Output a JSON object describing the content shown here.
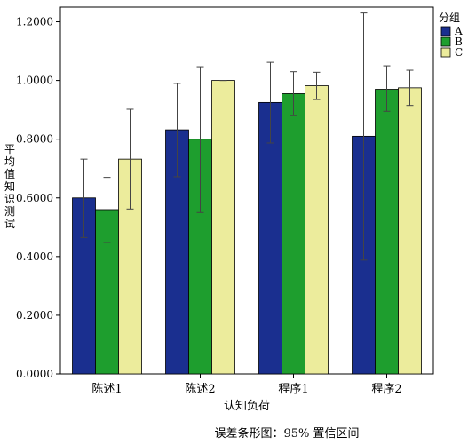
{
  "chart_data": {
    "type": "bar",
    "categories": [
      "陈述1",
      "陈述2",
      "程序1",
      "程序2"
    ],
    "series": [
      {
        "name": "A",
        "color": "#1a2f8f",
        "values": [
          0.6,
          0.832,
          0.925,
          0.81
        ],
        "ci_low": [
          0.465,
          0.672,
          0.787,
          0.388
        ],
        "ci_high": [
          0.732,
          0.99,
          1.062,
          1.23
        ]
      },
      {
        "name": "B",
        "color": "#1e9e2e",
        "values": [
          0.56,
          0.8,
          0.955,
          0.97
        ],
        "ci_low": [
          0.448,
          0.55,
          0.88,
          0.895
        ],
        "ci_high": [
          0.67,
          1.047,
          1.03,
          1.05
        ]
      },
      {
        "name": "C",
        "color": "#ecec9c",
        "values": [
          0.732,
          1.0,
          0.982,
          0.975
        ],
        "ci_low": [
          0.562,
          1.0,
          0.935,
          0.915
        ],
        "ci_high": [
          0.902,
          1.0,
          1.028,
          1.035
        ]
      }
    ],
    "ylim": [
      0,
      1.25
    ],
    "yticks": [
      "0.0000",
      "0.2000",
      "0.4000",
      "0.6000",
      "0.8000",
      "1.0000",
      "1.2000"
    ],
    "ylabel": "平均值知识测试",
    "xlabel": "认知负荷",
    "legend_title": "分组",
    "legend_position": "top-right",
    "caption": "误差条形图：95% 置信区间",
    "grid": false
  }
}
